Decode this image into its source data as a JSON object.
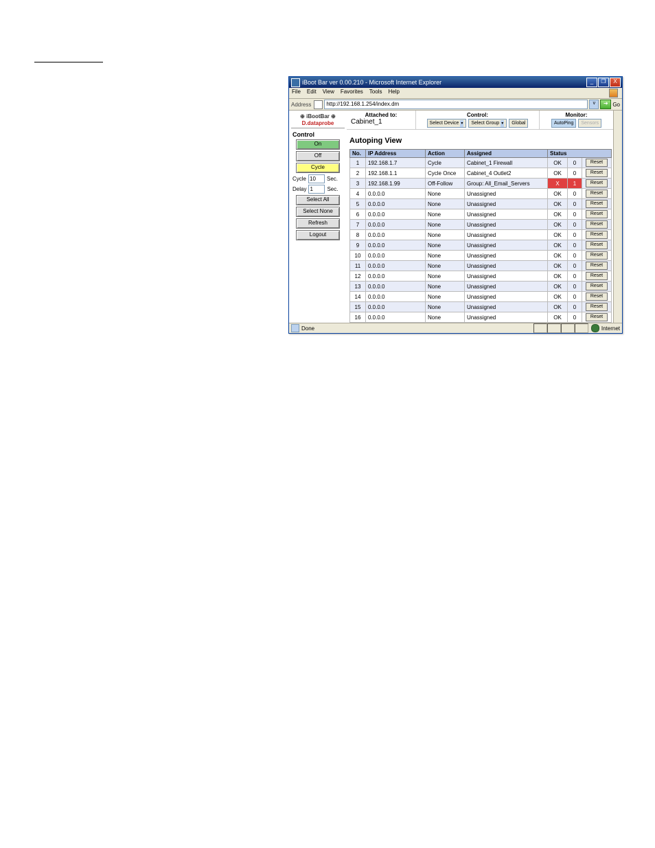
{
  "titlebar": {
    "text": "iBoot Bar ver 0.00.210 - Microsoft Internet Explorer"
  },
  "wincontrols": {
    "min": "_",
    "max": "❐",
    "close": "X"
  },
  "menubar": {
    "items": [
      "File",
      "Edit",
      "View",
      "Favorites",
      "Tools",
      "Help"
    ]
  },
  "addressbar": {
    "label": "Address",
    "url": "http://192.168.1.254/index.dm",
    "go": "Go"
  },
  "sidebar": {
    "logo1": "⊕ iBootBar ⊕",
    "logo2": "D.dataprobe",
    "control_label": "Control",
    "on": "On",
    "off": "Off",
    "cycle": "Cycle",
    "cycle_label": "Cycle",
    "cycle_val": "10",
    "cycle_unit": "Sec.",
    "delay_label": "Delay",
    "delay_val": "1",
    "delay_unit": "Sec.",
    "select_all": "Select All",
    "select_none": "Select None",
    "refresh": "Refresh",
    "logout": "Logout"
  },
  "topstrip": {
    "attached_label": "Attached to:",
    "attached_name": "Cabinet_1",
    "control_label": "Control:",
    "select_device": "Select Device",
    "select_group": "Select Group",
    "global": "Global",
    "monitor_label": "Monitor:",
    "autoping": "AutoPing",
    "sensors": "Sensors"
  },
  "view": {
    "title": "Autoping View",
    "headers": {
      "no": "No.",
      "ip": "IP Address",
      "action": "Action",
      "assigned": "Assigned",
      "status": "Status"
    },
    "reset_label": "Reset",
    "rows": [
      {
        "no": "1",
        "ip": "192.168.1.7",
        "action": "Cycle",
        "assigned": "Cabinet_1 Firewall",
        "status": "OK",
        "count": "0",
        "even": true
      },
      {
        "no": "2",
        "ip": "192.168.1.1",
        "action": "Cycle Once",
        "assigned": "Cabinet_4 Outlet2",
        "status": "OK",
        "count": "0",
        "even": false
      },
      {
        "no": "3",
        "ip": "192.168.1.99",
        "action": "Off-Follow",
        "assigned": "Group: All_Email_Servers",
        "status": "X",
        "count": "1",
        "even": true,
        "bad": true
      },
      {
        "no": "4",
        "ip": "0.0.0.0",
        "action": "None",
        "assigned": "Unassigned",
        "status": "OK",
        "count": "0",
        "even": false
      },
      {
        "no": "5",
        "ip": "0.0.0.0",
        "action": "None",
        "assigned": "Unassigned",
        "status": "OK",
        "count": "0",
        "even": true
      },
      {
        "no": "6",
        "ip": "0.0.0.0",
        "action": "None",
        "assigned": "Unassigned",
        "status": "OK",
        "count": "0",
        "even": false
      },
      {
        "no": "7",
        "ip": "0.0.0.0",
        "action": "None",
        "assigned": "Unassigned",
        "status": "OK",
        "count": "0",
        "even": true
      },
      {
        "no": "8",
        "ip": "0.0.0.0",
        "action": "None",
        "assigned": "Unassigned",
        "status": "OK",
        "count": "0",
        "even": false
      },
      {
        "no": "9",
        "ip": "0.0.0.0",
        "action": "None",
        "assigned": "Unassigned",
        "status": "OK",
        "count": "0",
        "even": true
      },
      {
        "no": "10",
        "ip": "0.0.0.0",
        "action": "None",
        "assigned": "Unassigned",
        "status": "OK",
        "count": "0",
        "even": false
      },
      {
        "no": "11",
        "ip": "0.0.0.0",
        "action": "None",
        "assigned": "Unassigned",
        "status": "OK",
        "count": "0",
        "even": true
      },
      {
        "no": "12",
        "ip": "0.0.0.0",
        "action": "None",
        "assigned": "Unassigned",
        "status": "OK",
        "count": "0",
        "even": false
      },
      {
        "no": "13",
        "ip": "0.0.0.0",
        "action": "None",
        "assigned": "Unassigned",
        "status": "OK",
        "count": "0",
        "even": true
      },
      {
        "no": "14",
        "ip": "0.0.0.0",
        "action": "None",
        "assigned": "Unassigned",
        "status": "OK",
        "count": "0",
        "even": false
      },
      {
        "no": "15",
        "ip": "0.0.0.0",
        "action": "None",
        "assigned": "Unassigned",
        "status": "OK",
        "count": "0",
        "even": true
      },
      {
        "no": "16",
        "ip": "0.0.0.0",
        "action": "None",
        "assigned": "Unassigned",
        "status": "OK",
        "count": "0",
        "even": false
      }
    ]
  },
  "statusbar": {
    "done": "Done",
    "zone": "Internet"
  }
}
